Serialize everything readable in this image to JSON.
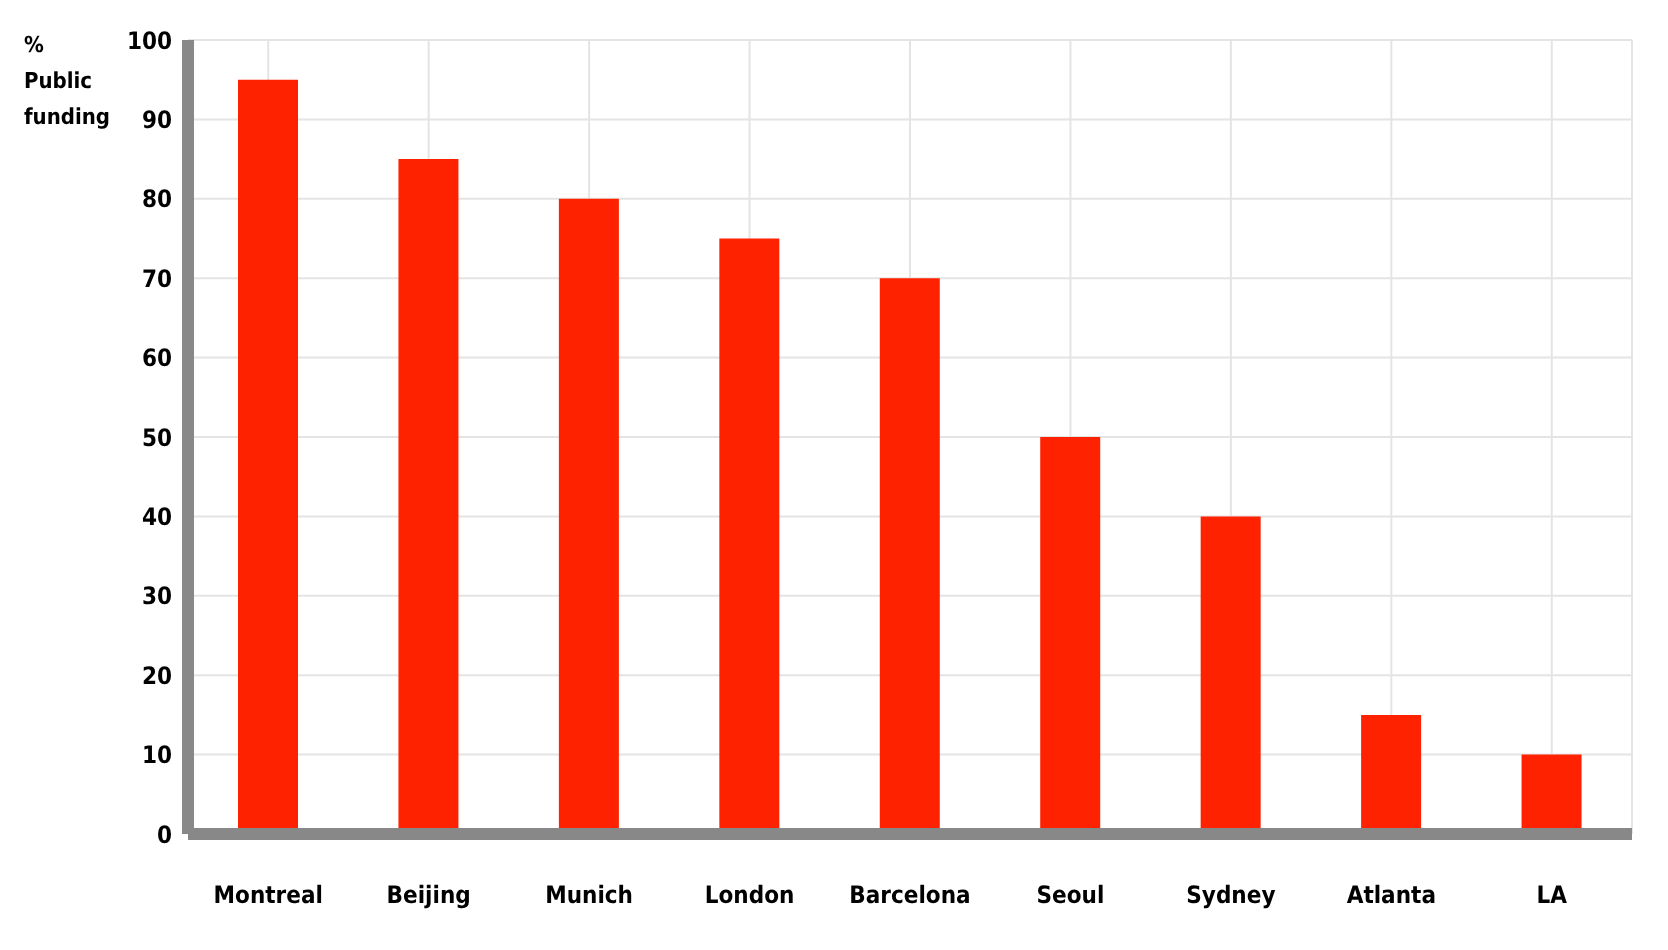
{
  "chart_data": {
    "type": "bar",
    "ylabel": "% Public funding",
    "categories": [
      "Montreal",
      "Beijing",
      "Munich",
      "London",
      "Barcelona",
      "Seoul",
      "Sydney",
      "Atlanta",
      "LA"
    ],
    "values": [
      95,
      85,
      80,
      75,
      70,
      50,
      40,
      15,
      10
    ],
    "color": "#ff2200",
    "ylim": [
      0,
      100
    ],
    "yticks": [
      0,
      10,
      20,
      30,
      40,
      50,
      60,
      70,
      80,
      90,
      100
    ],
    "grid": true
  }
}
